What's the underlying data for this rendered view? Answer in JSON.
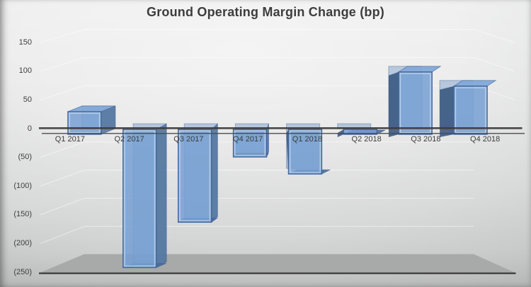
{
  "title": "Ground Operating Margin Change (bp)",
  "chart_data": {
    "type": "bar",
    "style": "3d-column",
    "title": "Ground Operating Margin Change (bp)",
    "unit": "bp",
    "categories": [
      "Q1 2017",
      "Q2 2017",
      "Q3 2017",
      "Q4 2017",
      "Q1 2018",
      "Q2 2018",
      "Q3 2018",
      "Q4 2018"
    ],
    "values": [
      35,
      -240,
      -160,
      -45,
      -75,
      -5,
      105,
      80
    ],
    "y_ticks": [
      {
        "label": "150",
        "value": 150
      },
      {
        "label": "100",
        "value": 100
      },
      {
        "label": "50",
        "value": 50
      },
      {
        "label": "0",
        "value": 0
      },
      {
        "label": "(50)",
        "value": -50
      },
      {
        "label": "(100)",
        "value": -100
      },
      {
        "label": "(150)",
        "value": -150
      },
      {
        "label": "(200)",
        "value": -200
      },
      {
        "label": "(250)",
        "value": -250
      }
    ],
    "ylim": [
      -250,
      150
    ],
    "grid": true,
    "legend": "none",
    "xlabel": "",
    "ylabel": ""
  },
  "colors": {
    "bar_front": "#76a0d2",
    "bar_back": "#6b93c5",
    "bar_top": "#83a9d8",
    "bar_bottom_cap": "#48699b",
    "bar_side_right": "#54779f",
    "bar_side_left": "#33517b",
    "bar_border": "#44689a",
    "axis_line": "#3b3b3b",
    "floor": "#a8a9a9",
    "gridline": "#ffffff",
    "text": "#3d3d3d"
  }
}
